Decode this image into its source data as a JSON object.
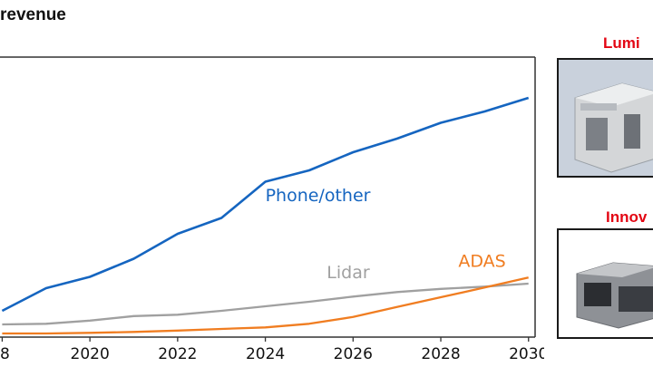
{
  "chart_data": {
    "type": "line",
    "title": "revenue",
    "subtitle": "",
    "x": [
      2018,
      2019,
      2020,
      2021,
      2022,
      2023,
      2024,
      2025,
      2026,
      2027,
      2028,
      2029,
      2030
    ],
    "x_tick_labels": [
      "8",
      "2020",
      "2022",
      "2024",
      "2026",
      "2028",
      "2030"
    ],
    "x_range": [
      2017.95,
      2030.15
    ],
    "y_range": [
      0,
      100
    ],
    "grid": false,
    "series": [
      {
        "name": "Phone/other",
        "color": "#1565c0",
        "values": [
          10,
          20,
          25,
          33,
          44,
          51,
          67,
          72,
          80,
          86,
          93,
          98,
          104
        ]
      },
      {
        "name": "Lidar",
        "color": "#a0a0a0",
        "values": [
          4,
          4.3,
          5.7,
          7.7,
          8.3,
          10,
          12,
          14,
          16.3,
          18.3,
          19.7,
          20.7,
          22
        ]
      },
      {
        "name": "ADAS",
        "color": "#f07d21",
        "values": [
          0,
          0,
          0.3,
          0.7,
          1.3,
          2,
          2.7,
          4.3,
          7.3,
          11.7,
          16,
          20.3,
          24.7
        ]
      }
    ]
  },
  "thumbnails": [
    {
      "caption": "Lumi",
      "icon": "lidar-unit-photo"
    },
    {
      "caption": "Innov",
      "icon": "lidar-device-photo"
    }
  ]
}
